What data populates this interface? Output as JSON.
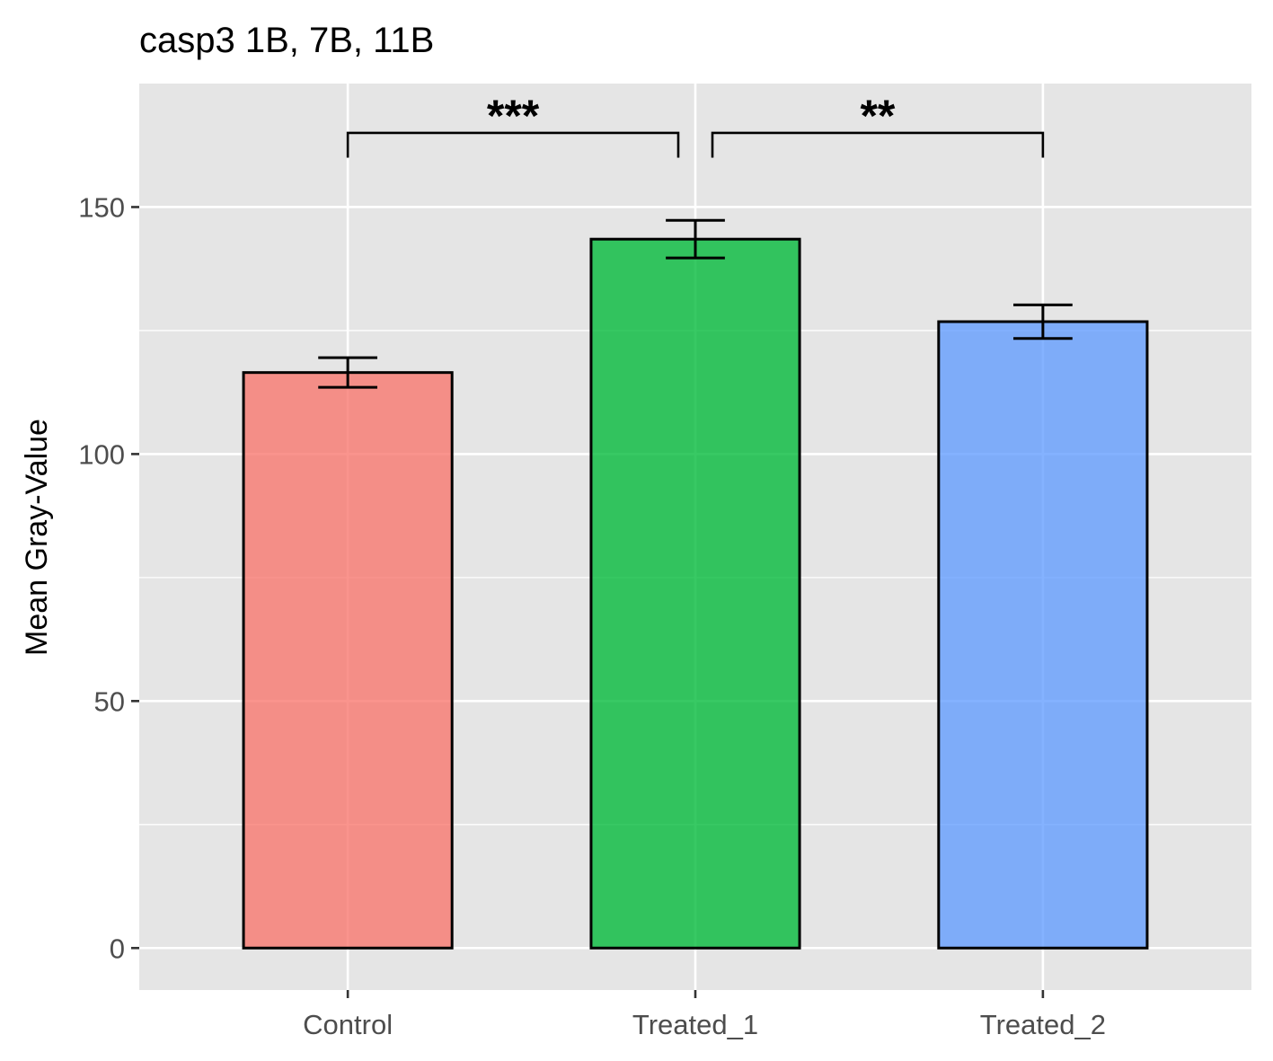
{
  "chart_data": {
    "type": "bar",
    "title": "casp3 1B, 7B, 11B",
    "xlabel": "",
    "ylabel": "Mean Gray-Value",
    "categories": [
      "Control",
      "Treated_1",
      "Treated_2"
    ],
    "values": [
      116.5,
      143.5,
      126.8
    ],
    "error": [
      3.0,
      3.8,
      3.4
    ],
    "colors": [
      "#F8766D",
      "#00BA38",
      "#619CFF"
    ],
    "ylim": [
      -8.5,
      175
    ],
    "yticks": [
      0,
      50,
      100,
      150
    ],
    "ytick_labels": [
      "0",
      "50",
      "100",
      "150"
    ],
    "grid": true,
    "background": "#E5E5E5",
    "significance": [
      {
        "from": 0,
        "to": 1,
        "label": "***",
        "y": 165,
        "tick": 160
      },
      {
        "from": 1,
        "to": 2,
        "label": "**",
        "y": 165,
        "tick": 160
      }
    ]
  }
}
